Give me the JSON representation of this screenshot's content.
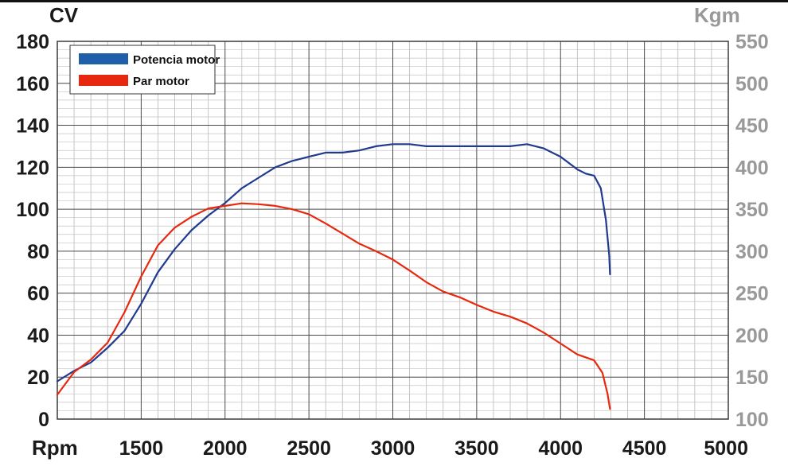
{
  "chart_data": {
    "type": "line",
    "y_left_label": "CV",
    "y_right_label": "Kgm",
    "x_label": "Rpm",
    "xlim": [
      1000,
      5000
    ],
    "ylim_left": [
      0,
      180
    ],
    "ylim_right": [
      100,
      550
    ],
    "x_ticks": [
      1500,
      2000,
      2500,
      3000,
      3500,
      4000,
      4500,
      5000
    ],
    "y_left_ticks": [
      0,
      20,
      40,
      60,
      80,
      100,
      120,
      140,
      160,
      180
    ],
    "y_right_ticks": [
      100,
      150,
      200,
      250,
      300,
      350,
      400,
      450,
      500,
      550
    ],
    "grid": true,
    "legend_position": "top-left",
    "series": [
      {
        "name": "Potencia motor",
        "axis": "left",
        "color": "#1f3a8f",
        "points": [
          [
            1000,
            18
          ],
          [
            1100,
            23
          ],
          [
            1200,
            27
          ],
          [
            1300,
            34
          ],
          [
            1400,
            42
          ],
          [
            1500,
            55
          ],
          [
            1600,
            70
          ],
          [
            1700,
            81
          ],
          [
            1800,
            90
          ],
          [
            1900,
            97
          ],
          [
            2000,
            103
          ],
          [
            2100,
            110
          ],
          [
            2200,
            115
          ],
          [
            2300,
            120
          ],
          [
            2400,
            123
          ],
          [
            2500,
            125
          ],
          [
            2600,
            127
          ],
          [
            2700,
            127
          ],
          [
            2800,
            128
          ],
          [
            2900,
            130
          ],
          [
            3000,
            131
          ],
          [
            3100,
            131
          ],
          [
            3200,
            130
          ],
          [
            3300,
            130
          ],
          [
            3400,
            130
          ],
          [
            3500,
            130
          ],
          [
            3600,
            130
          ],
          [
            3700,
            130
          ],
          [
            3800,
            131
          ],
          [
            3900,
            129
          ],
          [
            4000,
            125
          ],
          [
            4100,
            119
          ],
          [
            4150,
            117
          ],
          [
            4200,
            116
          ],
          [
            4240,
            110
          ],
          [
            4270,
            95
          ],
          [
            4290,
            78
          ],
          [
            4295,
            69
          ]
        ]
      },
      {
        "name": "Par motor",
        "axis": "right",
        "color": "#e8280e",
        "points": [
          [
            1000,
            129
          ],
          [
            1100,
            156
          ],
          [
            1200,
            171
          ],
          [
            1300,
            191
          ],
          [
            1400,
            227
          ],
          [
            1500,
            270
          ],
          [
            1600,
            307
          ],
          [
            1700,
            328
          ],
          [
            1800,
            341
          ],
          [
            1900,
            351
          ],
          [
            2000,
            354
          ],
          [
            2100,
            357
          ],
          [
            2200,
            356
          ],
          [
            2300,
            354
          ],
          [
            2400,
            350
          ],
          [
            2500,
            344
          ],
          [
            2600,
            333
          ],
          [
            2700,
            321
          ],
          [
            2800,
            309
          ],
          [
            2900,
            300
          ],
          [
            3000,
            290
          ],
          [
            3100,
            277
          ],
          [
            3200,
            263
          ],
          [
            3300,
            252
          ],
          [
            3400,
            245
          ],
          [
            3500,
            236
          ],
          [
            3600,
            228
          ],
          [
            3700,
            222
          ],
          [
            3800,
            214
          ],
          [
            3900,
            203
          ],
          [
            4000,
            190
          ],
          [
            4100,
            177
          ],
          [
            4200,
            170
          ],
          [
            4250,
            155
          ],
          [
            4280,
            130
          ],
          [
            4295,
            112
          ]
        ]
      }
    ]
  }
}
